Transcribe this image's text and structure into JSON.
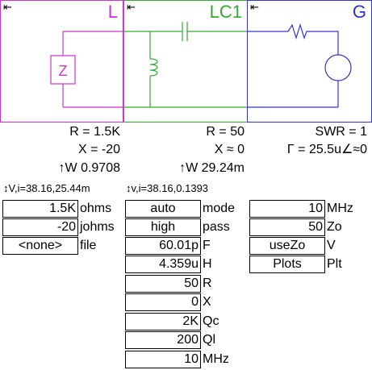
{
  "panels": {
    "load": {
      "title": "L",
      "arrow": "⇤"
    },
    "lc": {
      "title": "LC1",
      "arrow": "⇤"
    },
    "gen": {
      "title": "G",
      "arrow": "⇤"
    },
    "impedance_symbol": "Z"
  },
  "readouts": {
    "load": {
      "r": "R = 1.5K",
      "x": "X = -20",
      "w": "↑W 0.9708",
      "vi": "↕V,i=38.16,25.44m"
    },
    "lc": {
      "r": "R = 50",
      "x": "X ≈ 0",
      "w": "↑W 29.24m",
      "vi": "↕v,i=38.16,0.1393"
    },
    "gen": {
      "swr": "SWR = 1",
      "gamma": "Γ = 25.5u∠≈0"
    }
  },
  "load_fields": [
    {
      "value": "1.5K",
      "label": "ohms"
    },
    {
      "value": "-20",
      "label": "johms"
    },
    {
      "value": "<none>",
      "label": "file"
    }
  ],
  "lc_fields": [
    {
      "value": "auto",
      "label": "mode"
    },
    {
      "value": "high",
      "label": "pass"
    },
    {
      "value": "60.01p",
      "label": "F"
    },
    {
      "value": "4.359u",
      "label": "H"
    },
    {
      "value": "50",
      "label": "R"
    },
    {
      "value": "0",
      "label": "X"
    },
    {
      "value": "2K",
      "label": "Qc"
    },
    {
      "value": "200",
      "label": "Ql"
    },
    {
      "value": "10",
      "label": "MHz"
    }
  ],
  "gen_fields": [
    {
      "value": "10",
      "label": "MHz"
    },
    {
      "value": "50",
      "label": "Zo"
    },
    {
      "value": "useZo",
      "label": "V"
    },
    {
      "value": "Plots",
      "label": "Plt"
    }
  ],
  "colors": {
    "load": "#cc33cc",
    "lc": "#33aa33",
    "gen": "#3333cc"
  }
}
